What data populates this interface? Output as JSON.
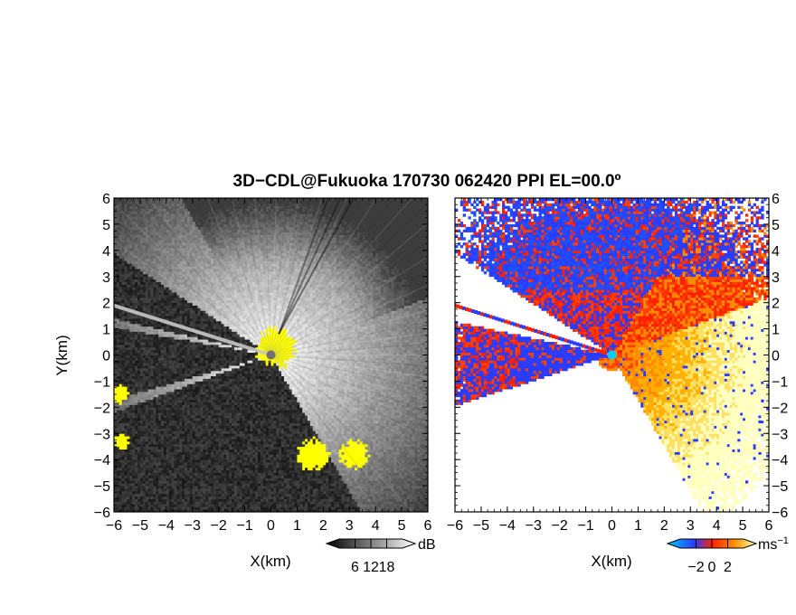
{
  "chart_data": [
    {
      "type": "heatmap",
      "title": "3D−CDL@Fukuoka 170730 062420 PPI EL=00.0º",
      "xlabel": "X(km)",
      "ylabel": "Y(km)",
      "xlim": [
        -6,
        6
      ],
      "ylim": [
        -6,
        6
      ],
      "xticks": [
        "−6",
        "−5",
        "−4",
        "−3",
        "−2",
        "−1",
        "0",
        "1",
        "2",
        "3",
        "4",
        "5",
        "6"
      ],
      "yticks": [
        "−6",
        "−5",
        "−4",
        "−3",
        "−2",
        "−1",
        "0",
        "1",
        "2",
        "3",
        "4",
        "5",
        "6"
      ],
      "field": "intensity",
      "colormap": [
        "#000000",
        "#ffffff"
      ],
      "overflow_color": "#ffff00",
      "colorbar": {
        "unit": "dB",
        "range": [
          0,
          24
        ],
        "tick_values": [
          6,
          12,
          18
        ],
        "tick_labels": [
          "6",
          "12",
          "18"
        ]
      },
      "radar_origin": [
        0,
        0
      ],
      "blocked_sectors": [
        [
          147,
          167
        ],
        [
          170,
          196
        ],
        [
          200,
          300
        ]
      ],
      "clear_sector_azimuths": [
        -55,
        20
      ],
      "yellow_regions": [
        {
          "center": [
            0.2,
            0.3
          ],
          "radius": 0.75
        },
        {
          "center": [
            1.6,
            -3.8
          ],
          "radius": 0.6
        },
        {
          "center": [
            3.2,
            -3.8
          ],
          "radius": 0.55
        },
        {
          "center": [
            -5.8,
            -1.5
          ],
          "radius": 0.35
        },
        {
          "center": [
            -5.7,
            -3.3
          ],
          "radius": 0.3
        }
      ]
    },
    {
      "type": "heatmap",
      "xlabel": "X(km)",
      "xlim": [
        -6,
        6
      ],
      "ylim": [
        -6,
        6
      ],
      "xticks": [
        "−6",
        "−5",
        "−4",
        "−3",
        "−2",
        "−1",
        "0",
        "1",
        "2",
        "3",
        "4",
        "5",
        "6"
      ],
      "yticks": [
        "−6",
        "−5",
        "−4",
        "−3",
        "−2",
        "−1",
        "0",
        "1",
        "2",
        "3",
        "4",
        "5",
        "6"
      ],
      "field": "doppler_velocity",
      "colormap": [
        "#00c8ff",
        "#2a3cff",
        "#ff2000",
        "#ff8c00",
        "#ffffa0"
      ],
      "colorbar": {
        "unit": "ms",
        "unit_exponent": "−1",
        "range": [
          -4,
          4
        ],
        "tick_values": [
          -2,
          0,
          2
        ],
        "tick_labels": [
          "−2",
          "0",
          "2"
        ]
      },
      "radar_origin": [
        0,
        0
      ],
      "velocity_description": [
        "blue north-west and near radar",
        "red-orange center",
        "yellow-white south-east"
      ]
    }
  ]
}
